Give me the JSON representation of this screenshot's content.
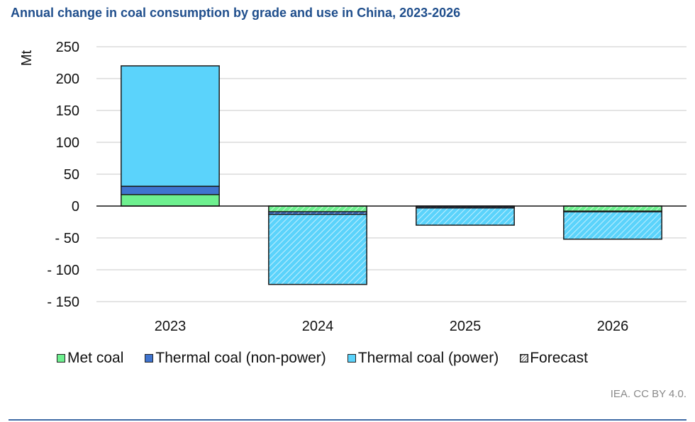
{
  "title": "Annual change in coal consumption by grade and use in China, 2023-2026",
  "source": "IEA. CC BY 4.0.",
  "chart_data": {
    "type": "bar",
    "stacked": true,
    "title": "Annual change in coal consumption by grade and use in China, 2023-2026",
    "xlabel": "",
    "ylabel": "Mt",
    "ylim": [
      -150,
      250
    ],
    "yticks": [
      250,
      200,
      150,
      100,
      50,
      0,
      -50,
      -100,
      -150
    ],
    "ytick_labels": [
      "250",
      "200",
      "150",
      "100",
      "50",
      "0",
      "- 50",
      "- 100",
      "- 150"
    ],
    "grid": true,
    "categories": [
      "2023",
      "2024",
      "2025",
      "2026"
    ],
    "forecast": [
      false,
      true,
      true,
      true
    ],
    "series": [
      {
        "name": "Met coal",
        "color": "#6ef08f",
        "values": [
          18,
          -9,
          -1,
          -8
        ]
      },
      {
        "name": "Thermal coal (non-power)",
        "color": "#3f74cf",
        "values": [
          13,
          -4,
          -2,
          -1
        ]
      },
      {
        "name": "Thermal coal (power)",
        "color": "#5bd3fb",
        "values": [
          189,
          -110,
          -27,
          -43
        ]
      }
    ],
    "legend": {
      "position": "bottom",
      "items": [
        {
          "label": "Met coal",
          "color": "#6ef08f",
          "pattern": "solid"
        },
        {
          "label": "Thermal coal (non-power)",
          "color": "#3f74cf",
          "pattern": "solid"
        },
        {
          "label": "Thermal coal (power)",
          "color": "#5bd3fb",
          "pattern": "solid"
        },
        {
          "label": "Forecast",
          "color": "#ffffff",
          "pattern": "hatched"
        }
      ]
    }
  }
}
